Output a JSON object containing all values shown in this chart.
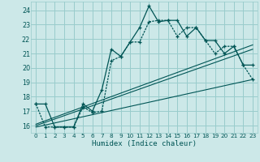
{
  "xlabel": "Humidex (Indice chaleur)",
  "bg_color": "#cce8e8",
  "grid_color": "#99cccc",
  "line_color": "#005555",
  "xlim": [
    -0.5,
    23.5
  ],
  "ylim": [
    15.5,
    24.6
  ],
  "yticks": [
    16,
    17,
    18,
    19,
    20,
    21,
    22,
    23,
    24
  ],
  "xticks": [
    0,
    1,
    2,
    3,
    4,
    5,
    6,
    7,
    8,
    9,
    10,
    11,
    12,
    13,
    14,
    15,
    16,
    17,
    18,
    19,
    20,
    21,
    22,
    23
  ],
  "series1_x": [
    0,
    1,
    2,
    3,
    4,
    5,
    6,
    7,
    8,
    9,
    10,
    11,
    12,
    13,
    14,
    15,
    16,
    17,
    18,
    19,
    20,
    21,
    22,
    23
  ],
  "series1_y": [
    17.5,
    17.5,
    15.9,
    15.9,
    15.9,
    17.5,
    17.0,
    18.5,
    21.3,
    20.8,
    21.8,
    22.8,
    24.3,
    23.2,
    23.3,
    23.3,
    22.2,
    22.8,
    21.9,
    21.9,
    21.0,
    21.5,
    20.2,
    20.2
  ],
  "series2_x": [
    0,
    1,
    2,
    3,
    4,
    5,
    6,
    7,
    8,
    9,
    10,
    11,
    12,
    13,
    14,
    15,
    16,
    17,
    18,
    19,
    20,
    21,
    22,
    23
  ],
  "series2_y": [
    17.5,
    15.9,
    15.9,
    15.9,
    15.9,
    17.3,
    16.9,
    17.0,
    20.5,
    20.8,
    21.8,
    21.8,
    23.2,
    23.3,
    23.3,
    22.2,
    22.8,
    22.8,
    21.9,
    21.0,
    21.5,
    21.5,
    20.2,
    19.2
  ],
  "line1_x": [
    0,
    23
  ],
  "line1_y": [
    16.0,
    21.3
  ],
  "line2_x": [
    0,
    23
  ],
  "line2_y": [
    16.1,
    21.6
  ],
  "line3_x": [
    0,
    23
  ],
  "line3_y": [
    15.9,
    19.2
  ]
}
